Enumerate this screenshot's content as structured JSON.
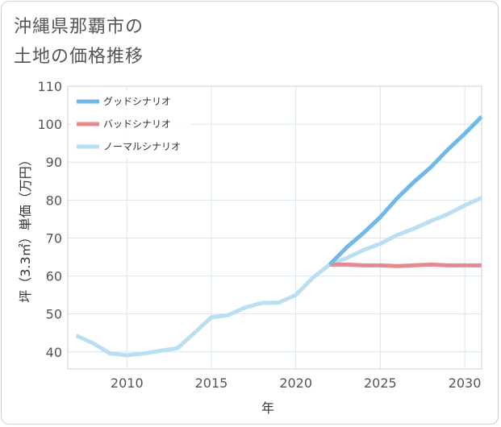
{
  "page": {
    "title_line1": "沖縄県那覇市の",
    "title_line2": "土地の価格推移"
  },
  "chart_data": {
    "type": "line",
    "title": "沖縄県那覇市の土地の価格推移",
    "xlabel": "年",
    "ylabel": "坪（3.3㎡）単価（万円）",
    "xlim": [
      2006.5,
      2031
    ],
    "ylim": [
      35.5,
      110
    ],
    "xticks": [
      2010,
      2015,
      2020,
      2025,
      2030
    ],
    "yticks": [
      40,
      50,
      60,
      70,
      80,
      90,
      100,
      110
    ],
    "legend_position": "top-left",
    "grid": true,
    "series": [
      {
        "name": "グッドシナリオ",
        "color": "#70b8e8",
        "x": [
          2022,
          2023,
          2024,
          2025,
          2026,
          2027,
          2028,
          2029,
          2030,
          2031
        ],
        "y": [
          63,
          67.5,
          71.3,
          75.5,
          80.5,
          84.8,
          88.7,
          93.3,
          97.5,
          102
        ]
      },
      {
        "name": "バッドシナリオ",
        "color": "#e38b91",
        "x": [
          2022,
          2023,
          2024,
          2025,
          2026,
          2027,
          2028,
          2029,
          2030,
          2031
        ],
        "y": [
          63,
          63,
          62.8,
          62.8,
          62.6,
          62.8,
          63,
          62.8,
          62.8,
          62.8
        ]
      },
      {
        "name": "ノーマルシナリオ",
        "color": "#b9dff0",
        "x": [
          2007,
          2008,
          2009,
          2010,
          2011,
          2012,
          2013,
          2014,
          2015,
          2016,
          2017,
          2018,
          2019,
          2020,
          2021,
          2022,
          2023,
          2024,
          2025,
          2026,
          2027,
          2028,
          2029,
          2030,
          2031
        ],
        "y": [
          44.3,
          42.3,
          39.6,
          39.1,
          39.6,
          40.3,
          41,
          45,
          49.1,
          49.7,
          51.7,
          52.9,
          53,
          55,
          59.5,
          63,
          64.7,
          66.8,
          68.5,
          70.8,
          72.5,
          74.5,
          76.3,
          78.6,
          80.6
        ]
      }
    ]
  }
}
